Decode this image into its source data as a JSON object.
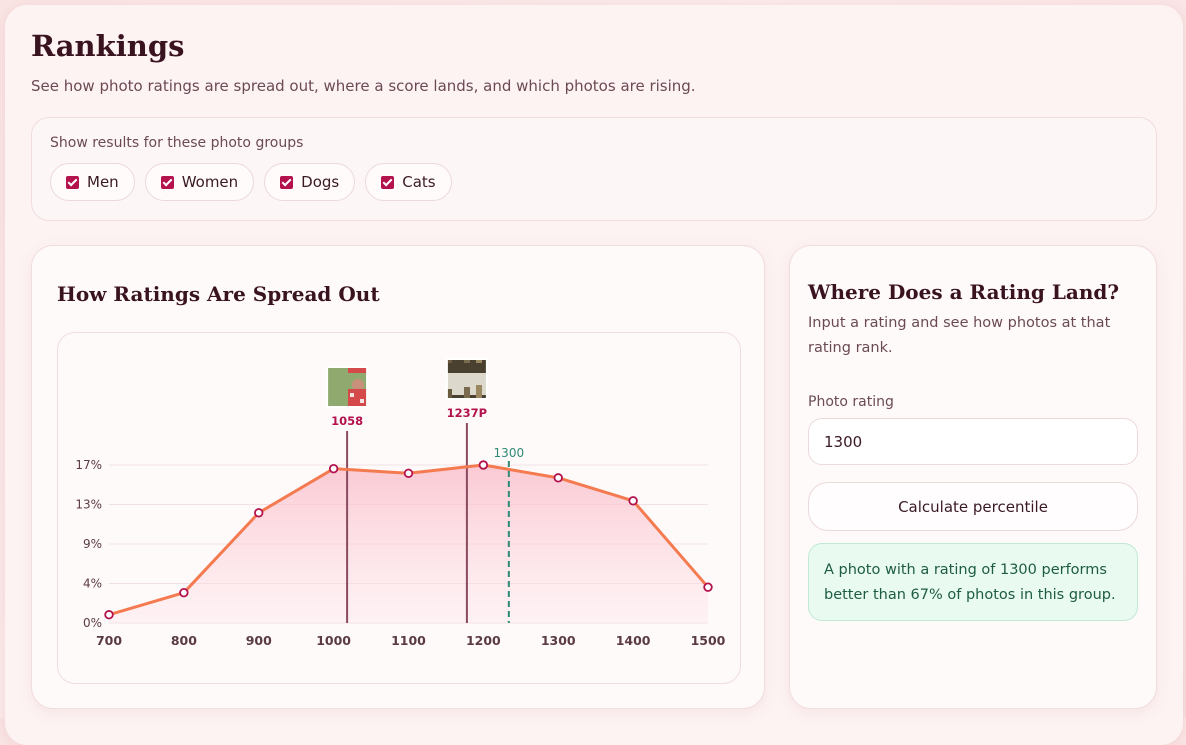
{
  "header": {
    "title": "Rankings",
    "subtitle": "See how photo ratings are spread out, where a score lands, and which photos are rising."
  },
  "filters": {
    "label": "Show results for these photo groups",
    "groups": [
      {
        "label": "Men",
        "checked": true
      },
      {
        "label": "Women",
        "checked": true
      },
      {
        "label": "Dogs",
        "checked": true
      },
      {
        "label": "Cats",
        "checked": true
      }
    ]
  },
  "distribution": {
    "title": "How Ratings Are Spread Out"
  },
  "calculator": {
    "title": "Where Does a Rating Land?",
    "description": "Input a rating and see how photos at that rating rank.",
    "input_label": "Photo rating",
    "input_value": "1300",
    "button_label": "Calculate percentile",
    "result_text": "A photo with a rating of 1300 performs better than 67% of photos in this group."
  },
  "colors": {
    "accent": "#b3124d",
    "line": "#f47a50",
    "marker_line": "#8a4a60",
    "query_line": "#2e8a76",
    "result_bg": "#e9faf1"
  },
  "chart_data": {
    "type": "area",
    "x": [
      700,
      800,
      900,
      1000,
      1100,
      1200,
      1300,
      1400,
      1500
    ],
    "values": [
      0.9,
      3.3,
      12.0,
      16.8,
      16.3,
      17.2,
      15.8,
      13.3,
      3.9
    ],
    "xlabel": "",
    "ylabel": "",
    "ytick_labels": [
      "0%",
      "4%",
      "9%",
      "13%",
      "17%"
    ],
    "yticks": [
      0,
      4.3,
      8.6,
      12.9,
      17.2
    ],
    "xlim": [
      700,
      1500
    ],
    "ylim": [
      0,
      17.2
    ],
    "grid": true,
    "photo_markers": [
      {
        "label": "1058",
        "x": 1018,
        "thumbnail": "photo-woman-red-dress"
      },
      {
        "label": "1237P",
        "x": 1178,
        "thumbnail": "photo-outdoor-group"
      }
    ],
    "query_marker": {
      "label": "1300",
      "x": 1234
    }
  }
}
